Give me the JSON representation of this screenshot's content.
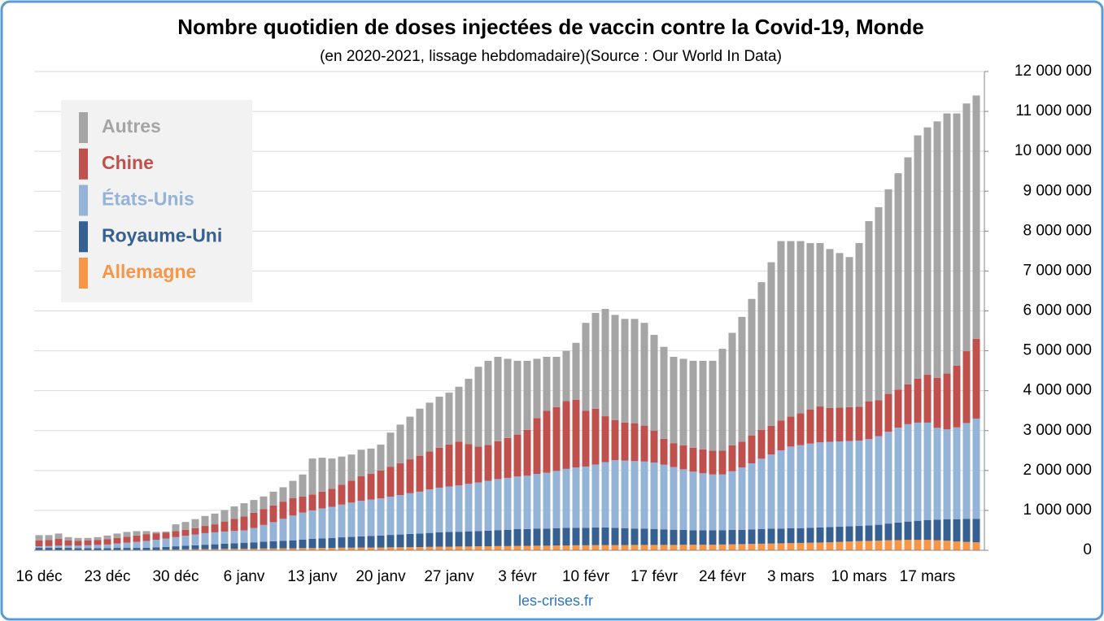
{
  "chart_data": {
    "type": "stacked_bar",
    "title": "Nombre quotidien de doses injectées de vaccin contre la Covid-19, Monde",
    "subtitle": "(en 2020-2021, lissage hebdomadaire)(Source : Our World In Data)",
    "footer": "les-crises.fr",
    "categories": [
      "16 déc",
      null,
      null,
      null,
      null,
      null,
      null,
      "23 déc",
      null,
      null,
      null,
      null,
      null,
      null,
      "30 déc",
      null,
      null,
      null,
      null,
      null,
      null,
      "6 janv",
      null,
      null,
      null,
      null,
      null,
      null,
      "13 janv",
      null,
      null,
      null,
      null,
      null,
      null,
      "20 janv",
      null,
      null,
      null,
      null,
      null,
      null,
      "27 janv",
      null,
      null,
      null,
      null,
      null,
      null,
      "3 févr",
      null,
      null,
      null,
      null,
      null,
      null,
      "10 févr",
      null,
      null,
      null,
      null,
      null,
      null,
      "17 févr",
      null,
      null,
      null,
      null,
      null,
      null,
      "24 févr",
      null,
      null,
      null,
      null,
      null,
      null,
      "3 mars",
      null,
      null,
      null,
      null,
      null,
      null,
      "10 mars",
      null,
      null,
      null,
      null,
      null,
      null,
      "17 mars",
      null,
      null,
      null,
      null,
      null
    ],
    "series": [
      {
        "name": "Autres",
        "color": "#a5a5a5",
        "values": [
          130000,
          125000,
          135000,
          85000,
          75000,
          65000,
          75000,
          95000,
          110000,
          120000,
          110000,
          75000,
          35000,
          25000,
          170000,
          195000,
          225000,
          250000,
          270000,
          290000,
          315000,
          330000,
          320000,
          315000,
          345000,
          360000,
          430000,
          555000,
          900000,
          850000,
          760000,
          705000,
          655000,
          660000,
          630000,
          650000,
          855000,
          965000,
          1070000,
          1180000,
          1225000,
          1280000,
          1300000,
          1375000,
          1635000,
          2000000,
          2110000,
          2115000,
          1985000,
          1850000,
          1730000,
          1485000,
          1355000,
          1260000,
          1260000,
          1425000,
          2200000,
          2400000,
          2690000,
          2640000,
          2600000,
          2615000,
          2575000,
          2400000,
          2305000,
          2165000,
          2170000,
          2180000,
          2220000,
          2250000,
          2550000,
          2820000,
          3125000,
          3420000,
          3705000,
          4100000,
          4495000,
          4400000,
          4315000,
          4175000,
          4095000,
          3980000,
          3870000,
          3760000,
          4100000,
          4515000,
          4840000,
          5130000,
          5425000,
          5690000,
          6100000,
          6200000,
          6430000,
          6520000,
          6320000,
          6210000,
          6100000
        ]
      },
      {
        "name": "Chine",
        "color": "#c0504d",
        "values": [
          150000,
          150000,
          170000,
          130000,
          120000,
          120000,
          120000,
          130000,
          140000,
          150000,
          160000,
          170000,
          160000,
          150000,
          150000,
          150000,
          160000,
          180000,
          200000,
          250000,
          300000,
          350000,
          380000,
          400000,
          420000,
          430000,
          440000,
          400000,
          400000,
          420000,
          450000,
          500000,
          550000,
          620000,
          650000,
          700000,
          750000,
          800000,
          850000,
          900000,
          950000,
          1000000,
          1050000,
          1100000,
          1000000,
          900000,
          900000,
          950000,
          1000000,
          1050000,
          1150000,
          1400000,
          1550000,
          1600000,
          1700000,
          1700000,
          1400000,
          1400000,
          1150000,
          1000000,
          950000,
          950000,
          900000,
          800000,
          650000,
          600000,
          600000,
          600000,
          600000,
          600000,
          600000,
          650000,
          650000,
          700000,
          720000,
          720000,
          750000,
          750000,
          800000,
          850000,
          900000,
          850000,
          850000,
          850000,
          850000,
          950000,
          900000,
          950000,
          950000,
          1000000,
          1100000,
          1200000,
          1250000,
          1400000,
          1550000,
          1800000,
          2000000
        ]
      },
      {
        "name": "États-Unis",
        "color": "#95b3d7",
        "values": [
          40000,
          45000,
          50000,
          55000,
          60000,
          70000,
          80000,
          90000,
          110000,
          130000,
          150000,
          170000,
          190000,
          210000,
          230000,
          250000,
          270000,
          290000,
          300000,
          305000,
          310000,
          310000,
          360000,
          420000,
          480000,
          550000,
          620000,
          680000,
          715000,
          750000,
          780000,
          820000,
          860000,
          890000,
          910000,
          930000,
          960000,
          990000,
          1020000,
          1050000,
          1090000,
          1120000,
          1140000,
          1160000,
          1190000,
          1220000,
          1250000,
          1280000,
          1300000,
          1320000,
          1340000,
          1370000,
          1400000,
          1440000,
          1480000,
          1510000,
          1535000,
          1580000,
          1640000,
          1700000,
          1700000,
          1690000,
          1680000,
          1665000,
          1620000,
          1570000,
          1520000,
          1470000,
          1430000,
          1400000,
          1395000,
          1470000,
          1560000,
          1660000,
          1760000,
          1860000,
          1960000,
          2050000,
          2080000,
          2110000,
          2130000,
          2140000,
          2140000,
          2140000,
          2140000,
          2160000,
          2220000,
          2300000,
          2380000,
          2440000,
          2460000,
          2440000,
          2300000,
          2250000,
          2300000,
          2400000,
          2510000
        ]
      },
      {
        "name": "Royaume-Uni",
        "color": "#376092",
        "values": [
          60000,
          60000,
          65000,
          60000,
          55000,
          55000,
          55000,
          55000,
          60000,
          60000,
          60000,
          60000,
          65000,
          70000,
          80000,
          90000,
          100000,
          110000,
          120000,
          130000,
          140000,
          150000,
          160000,
          170000,
          180000,
          190000,
          200000,
          210000,
          230000,
          240000,
          250000,
          260000,
          270000,
          280000,
          290000,
          300000,
          310000,
          320000,
          330000,
          340000,
          350000,
          360000,
          370000,
          370000,
          380000,
          380000,
          390000,
          400000,
          410000,
          420000,
          420000,
          430000,
          430000,
          430000,
          440000,
          440000,
          440000,
          440000,
          440000,
          430000,
          420000,
          410000,
          410000,
          400000,
          390000,
          380000,
          370000,
          360000,
          360000,
          360000,
          360000,
          360000,
          360000,
          360000,
          370000,
          370000,
          370000,
          370000,
          370000,
          375000,
          380000,
          380000,
          380000,
          380000,
          380000,
          390000,
          400000,
          420000,
          440000,
          460000,
          480000,
          500000,
          520000,
          540000,
          560000,
          580000,
          590000
        ]
      },
      {
        "name": "Allemagne",
        "color": "#f79646",
        "values": [
          0,
          0,
          0,
          0,
          0,
          0,
          0,
          0,
          0,
          0,
          0,
          5000,
          10000,
          15000,
          20000,
          25000,
          25000,
          30000,
          30000,
          35000,
          35000,
          40000,
          40000,
          45000,
          45000,
          50000,
          50000,
          55000,
          55000,
          60000,
          60000,
          65000,
          65000,
          70000,
          70000,
          70000,
          75000,
          75000,
          80000,
          80000,
          85000,
          90000,
          90000,
          95000,
          95000,
          100000,
          100000,
          105000,
          105000,
          110000,
          110000,
          115000,
          115000,
          120000,
          120000,
          125000,
          125000,
          130000,
          130000,
          130000,
          130000,
          135000,
          135000,
          135000,
          135000,
          135000,
          140000,
          140000,
          140000,
          140000,
          145000,
          150000,
          155000,
          160000,
          165000,
          170000,
          175000,
          180000,
          185000,
          190000,
          195000,
          200000,
          210000,
          220000,
          230000,
          235000,
          240000,
          250000,
          255000,
          260000,
          260000,
          260000,
          250000,
          240000,
          220000,
          210000,
          200000
        ]
      }
    ],
    "ylim": [
      0,
      12000000
    ],
    "yticks": [
      0,
      {
        "value": 1000000,
        "label": "1 000 000"
      },
      {
        "value": 2000000,
        "label": "2 000 000"
      },
      {
        "value": 3000000,
        "label": "3 000 000"
      },
      {
        "value": 4000000,
        "label": "4 000 000"
      },
      {
        "value": 5000000,
        "label": "5 000 000"
      },
      {
        "value": 6000000,
        "label": "6 000 000"
      },
      {
        "value": 7000000,
        "label": "7 000 000"
      },
      {
        "value": 8000000,
        "label": "8 000 000"
      },
      {
        "value": 9000000,
        "label": "9 000 000"
      },
      {
        "value": 10000000,
        "label": "10 000 000"
      },
      {
        "value": 11000000,
        "label": "11 000 000"
      },
      {
        "value": 12000000,
        "label": "12 000 000"
      }
    ],
    "grid": true,
    "legend": "top-left"
  }
}
